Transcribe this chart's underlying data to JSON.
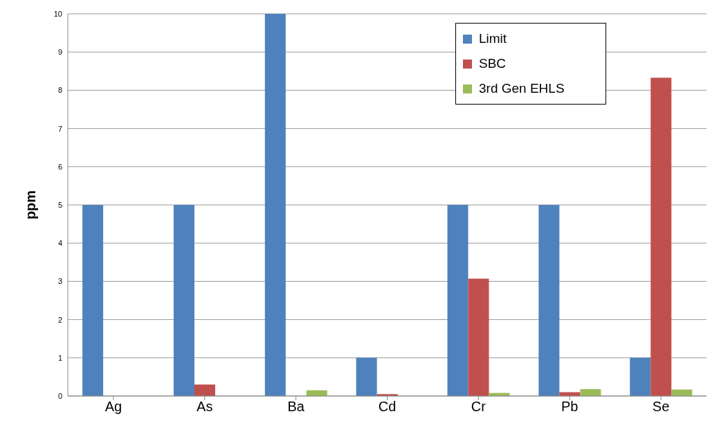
{
  "chart_data": {
    "type": "bar",
    "ylabel": "ppm",
    "categories": [
      "Ag",
      "As",
      "Ba",
      "Cd",
      "Cr",
      "Pb",
      "Se"
    ],
    "series": [
      {
        "name": "Limit",
        "color": "#4f81bd",
        "values": [
          5,
          5,
          10,
          1,
          5,
          5,
          1
        ]
      },
      {
        "name": "SBC",
        "color": "#c0504d",
        "values": [
          0,
          0.3,
          0,
          0.05,
          3.07,
          0.1,
          8.33
        ]
      },
      {
        "name": "3rd Gen EHLS",
        "color": "#9bbb59",
        "values": [
          0,
          0,
          0.15,
          0,
          0.08,
          0.18,
          0.17
        ]
      }
    ],
    "ylim": [
      0,
      10
    ],
    "yticks": [
      0,
      1,
      2,
      3,
      4,
      5,
      6,
      7,
      8,
      9,
      10
    ],
    "grid": "y",
    "legend": "top right"
  }
}
